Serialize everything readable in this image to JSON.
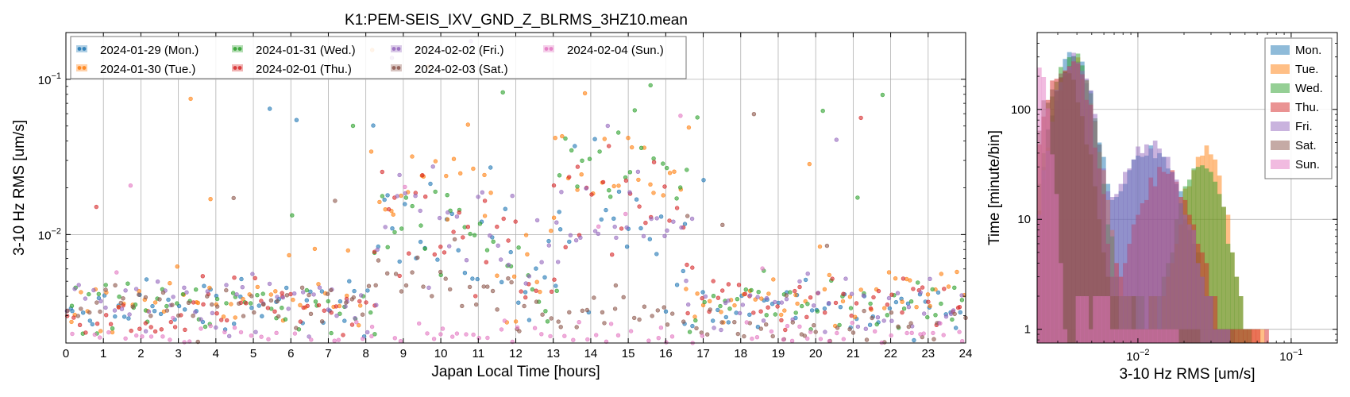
{
  "figure": {
    "title": "K1:PEM-SEIS_IXV_GND_Z_BLRMS_3HZ10.mean"
  },
  "days": [
    {
      "key": "mon",
      "label": "2024-01-29 (Mon.)",
      "short": "Mon.",
      "color": "#1f77b4"
    },
    {
      "key": "tue",
      "label": "2024-01-30 (Tue.)",
      "short": "Tue.",
      "color": "#ff7f0e"
    },
    {
      "key": "wed",
      "label": "2024-01-31 (Wed.)",
      "short": "Wed.",
      "color": "#2ca02c"
    },
    {
      "key": "thu",
      "label": "2024-02-01 (Thu.)",
      "short": "Thu.",
      "color": "#d62728"
    },
    {
      "key": "fri",
      "label": "2024-02-02 (Fri.)",
      "short": "Fri.",
      "color": "#9467bd"
    },
    {
      "key": "sat",
      "label": "2024-02-03 (Sat.)",
      "short": "Sat.",
      "color": "#8c564b"
    },
    {
      "key": "sun",
      "label": "2024-02-04 (Sun.)",
      "short": "Sun.",
      "color": "#e377c2"
    }
  ],
  "chart_data": [
    {
      "type": "scatter",
      "xlabel": "Japan Local Time [hours]",
      "ylabel": "3-10 Hz RMS [um/s]",
      "xlim": [
        0,
        24
      ],
      "ylim": [
        0.002,
        0.2
      ],
      "yscale": "log",
      "xticks": [
        "0",
        "1",
        "2",
        "3",
        "4",
        "5",
        "6",
        "7",
        "8",
        "9",
        "10",
        "11",
        "12",
        "13",
        "14",
        "15",
        "16",
        "17",
        "18",
        "19",
        "20",
        "21",
        "22",
        "23",
        "24"
      ],
      "yticks": [
        {
          "value": 0.01,
          "label": "10",
          "exp": "−2"
        },
        {
          "value": 0.1,
          "label": "10",
          "exp": "−1"
        }
      ],
      "grid": true,
      "legend": "top-left",
      "sampling": "one point every 10 minutes per day (approximate reading of the plotted cloud)",
      "series": [
        {
          "day": "mon",
          "segments": [
            {
              "from": 0,
              "to": 8.2,
              "level": 0.0035,
              "spread": 0.09
            },
            {
              "from": 8.2,
              "to": 12.0,
              "level": 0.011,
              "spread": 0.22
            },
            {
              "from": 12.0,
              "to": 13.0,
              "level": 0.0045,
              "spread": 0.15
            },
            {
              "from": 13.0,
              "to": 16.5,
              "level": 0.012,
              "spread": 0.25
            },
            {
              "from": 16.5,
              "to": 24,
              "level": 0.0033,
              "spread": 0.1
            }
          ]
        },
        {
          "day": "tue",
          "segments": [
            {
              "from": 0,
              "to": 8.2,
              "level": 0.0036,
              "spread": 0.09
            },
            {
              "from": 8.2,
              "to": 9.0,
              "level": 0.012,
              "spread": 0.2
            },
            {
              "from": 9.0,
              "to": 11.3,
              "level": 0.026,
              "spread": 0.12
            },
            {
              "from": 11.3,
              "to": 13.0,
              "level": 0.006,
              "spread": 0.25
            },
            {
              "from": 13.0,
              "to": 16.5,
              "level": 0.027,
              "spread": 0.13
            },
            {
              "from": 16.5,
              "to": 24,
              "level": 0.0037,
              "spread": 0.1
            }
          ]
        },
        {
          "day": "wed",
          "segments": [
            {
              "from": 0,
              "to": 8.2,
              "level": 0.0034,
              "spread": 0.09
            },
            {
              "from": 8.2,
              "to": 12.0,
              "level": 0.01,
              "spread": 0.22
            },
            {
              "from": 12.0,
              "to": 13.0,
              "level": 0.0045,
              "spread": 0.15
            },
            {
              "from": 13.0,
              "to": 16.5,
              "level": 0.028,
              "spread": 0.14
            },
            {
              "from": 16.5,
              "to": 24,
              "level": 0.0036,
              "spread": 0.1
            }
          ]
        },
        {
          "day": "thu",
          "segments": [
            {
              "from": 0,
              "to": 3.6,
              "level": 0.0027,
              "spread": 0.06
            },
            {
              "from": 3.6,
              "to": 8.2,
              "level": 0.0035,
              "spread": 0.09
            },
            {
              "from": 8.2,
              "to": 12.0,
              "level": 0.011,
              "spread": 0.2
            },
            {
              "from": 12.0,
              "to": 13.0,
              "level": 0.0045,
              "spread": 0.15
            },
            {
              "from": 13.0,
              "to": 16.5,
              "level": 0.018,
              "spread": 0.2
            },
            {
              "from": 16.5,
              "to": 24,
              "level": 0.0036,
              "spread": 0.1
            }
          ]
        },
        {
          "day": "fri",
          "segments": [
            {
              "from": 0,
              "to": 8.2,
              "level": 0.0035,
              "spread": 0.09
            },
            {
              "from": 8.2,
              "to": 12.0,
              "level": 0.012,
              "spread": 0.22
            },
            {
              "from": 12.0,
              "to": 13.0,
              "level": 0.005,
              "spread": 0.15
            },
            {
              "from": 13.0,
              "to": 16.5,
              "level": 0.013,
              "spread": 0.25
            },
            {
              "from": 16.5,
              "to": 24,
              "level": 0.0034,
              "spread": 0.1
            }
          ]
        },
        {
          "day": "sat",
          "segments": [
            {
              "from": 0,
              "to": 8.0,
              "level": 0.0035,
              "spread": 0.07
            },
            {
              "from": 8.0,
              "to": 12.0,
              "level": 0.0042,
              "spread": 0.08
            },
            {
              "from": 12.0,
              "to": 16.5,
              "level": 0.0032,
              "spread": 0.09
            },
            {
              "from": 16.5,
              "to": 24,
              "level": 0.0024,
              "spread": 0.08
            }
          ]
        },
        {
          "day": "sun",
          "segments": [
            {
              "from": 0,
              "to": 24,
              "level": 0.0021,
              "spread": 0.06
            }
          ]
        }
      ]
    },
    {
      "type": "histogram",
      "xlabel": "3-10 Hz RMS [um/s]",
      "ylabel": "Time [minute/bin]",
      "xlim": [
        0.0022,
        0.2
      ],
      "ylim": [
        0.75,
        500
      ],
      "xscale": "log",
      "yscale": "log",
      "xticks": [
        {
          "value": 0.01,
          "label": "10",
          "exp": "−2"
        },
        {
          "value": 0.1,
          "label": "10",
          "exp": "−1"
        }
      ],
      "yticks": [
        {
          "value": 1,
          "label": "1"
        },
        {
          "value": 10,
          "label": "10"
        },
        {
          "value": 100,
          "label": "100"
        }
      ],
      "grid": true,
      "legend": "top-right",
      "bins": 70,
      "series": [
        {
          "day": "mon",
          "peaks": [
            {
              "center": 0.0038,
              "height": 320,
              "width": 0.09
            },
            {
              "center": 0.012,
              "height": 40,
              "width": 0.14
            }
          ],
          "tail": 0.055
        },
        {
          "day": "tue",
          "peaks": [
            {
              "center": 0.0038,
              "height": 280,
              "width": 0.09
            },
            {
              "center": 0.027,
              "height": 40,
              "width": 0.09
            }
          ],
          "tail": 0.1
        },
        {
          "day": "wed",
          "peaks": [
            {
              "center": 0.0037,
              "height": 300,
              "width": 0.09
            },
            {
              "center": 0.026,
              "height": 30,
              "width": 0.1
            }
          ],
          "tail": 0.07
        },
        {
          "day": "thu",
          "peaks": [
            {
              "center": 0.0027,
              "height": 120,
              "width": 0.05
            },
            {
              "center": 0.0038,
              "height": 250,
              "width": 0.08
            },
            {
              "center": 0.015,
              "height": 25,
              "width": 0.12
            }
          ],
          "tail": 0.12
        },
        {
          "day": "fri",
          "peaks": [
            {
              "center": 0.0038,
              "height": 290,
              "width": 0.09
            },
            {
              "center": 0.012,
              "height": 45,
              "width": 0.14
            }
          ],
          "tail": 0.05
        },
        {
          "day": "sat",
          "peaks": [
            {
              "center": 0.0025,
              "height": 80,
              "width": 0.07
            },
            {
              "center": 0.0035,
              "height": 180,
              "width": 0.08
            }
          ],
          "tail": 0.03
        },
        {
          "day": "sun",
          "peaks": [
            {
              "center": 0.0021,
              "height": 300,
              "width": 0.06
            }
          ],
          "tail": 0.02
        }
      ]
    }
  ]
}
